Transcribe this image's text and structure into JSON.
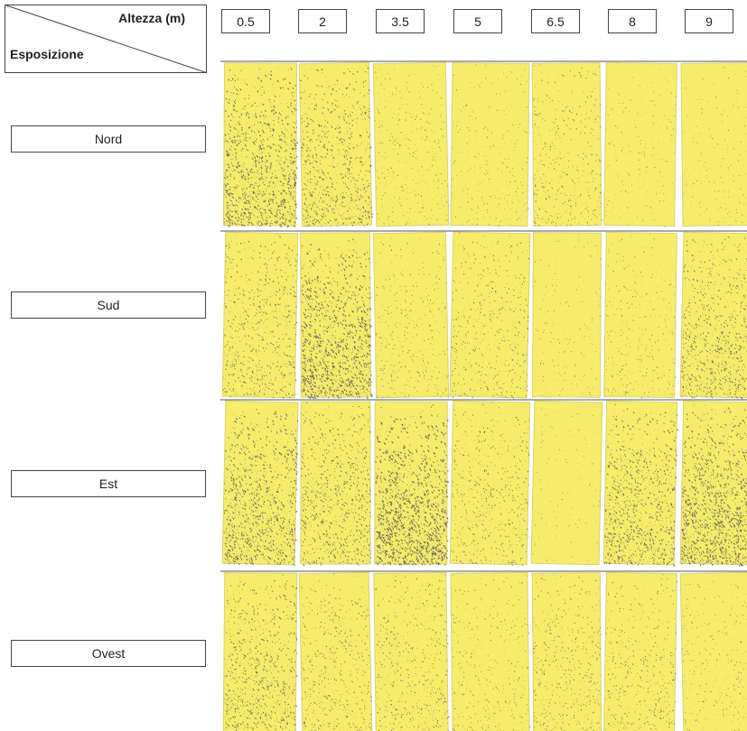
{
  "header": {
    "column_title": "Altezza (m)",
    "row_title": "Esposizione"
  },
  "columns": [
    0.5,
    2,
    3.5,
    5,
    6.5,
    8,
    9
  ],
  "rows": [
    "Nord",
    "Sud",
    "Est",
    "Ovest"
  ]
}
